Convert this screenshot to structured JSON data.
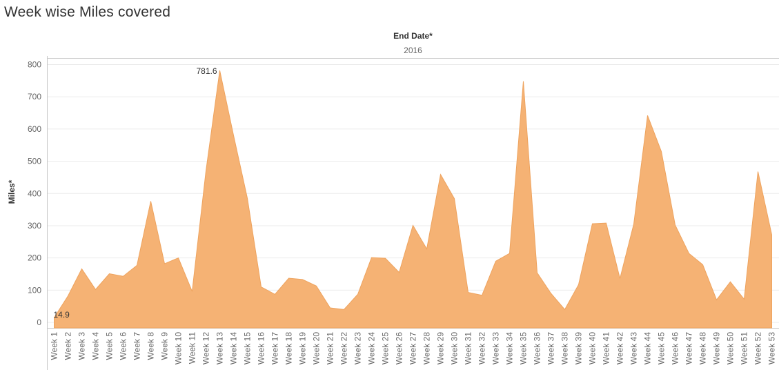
{
  "title": "Week wise Miles covered",
  "column_header": {
    "dimension": "End Date*",
    "value": "2016"
  },
  "colors": {
    "area": "#f5b274",
    "stroke": "#eea35e",
    "grid": "#ebebeb",
    "axis": "#c8c8c8",
    "label": "#666666"
  },
  "chart_data": {
    "type": "area",
    "title": "Week wise Miles covered",
    "xlabel": "",
    "ylabel": "Miles*",
    "ylim": [
      0,
      800
    ],
    "yticks": [
      0,
      100,
      200,
      300,
      400,
      500,
      600,
      700,
      800
    ],
    "grid": true,
    "categories": [
      "Week 1",
      "Week 2",
      "Week 3",
      "Week 4",
      "Week 5",
      "Week 6",
      "Week 7",
      "Week 8",
      "Week 9",
      "Week 10",
      "Week 11",
      "Week 12",
      "Week 13",
      "Week 14",
      "Week 15",
      "Week 16",
      "Week 17",
      "Week 18",
      "Week 19",
      "Week 20",
      "Week 21",
      "Week 22",
      "Week 23",
      "Week 24",
      "Week 25",
      "Week 26",
      "Week 27",
      "Week 28",
      "Week 29",
      "Week 30",
      "Week 31",
      "Week 32",
      "Week 33",
      "Week 34",
      "Week 35",
      "Week 36",
      "Week 37",
      "Week 38",
      "Week 39",
      "Week 40",
      "Week 41",
      "Week 42",
      "Week 43",
      "Week 44",
      "Week 45",
      "Week 46",
      "Week 47",
      "Week 48",
      "Week 49",
      "Week 50",
      "Week 51",
      "Week 52",
      "Week 53"
    ],
    "values": [
      14.9,
      82,
      166,
      102,
      151,
      143,
      177,
      376,
      182,
      200,
      96,
      470,
      781.6,
      580,
      385,
      110,
      87,
      137,
      133,
      113,
      45,
      40,
      87,
      201,
      199,
      155,
      301,
      228,
      459,
      384,
      93,
      84,
      190,
      214,
      748,
      154,
      90,
      40,
      117,
      306,
      308,
      136,
      305,
      642,
      530,
      302,
      214,
      179,
      70,
      126,
      72,
      468,
      272
    ],
    "annotations": [
      {
        "label": "781.6",
        "category": "Week 13",
        "value": 781.6
      },
      {
        "label": "14.9",
        "category": "Week 1",
        "value": 14.9
      }
    ]
  }
}
